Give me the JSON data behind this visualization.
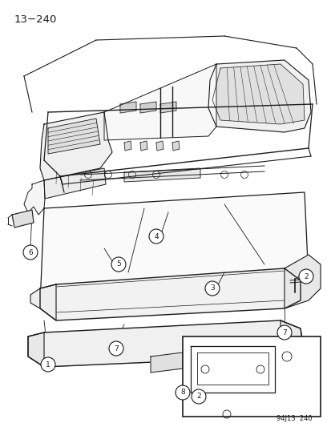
{
  "page_label": "13−240",
  "footer_label": "94J13  240",
  "bg_color": "#ffffff",
  "line_color": "#1a1a1a",
  "fig_width": 4.14,
  "fig_height": 5.33,
  "dpi": 100
}
